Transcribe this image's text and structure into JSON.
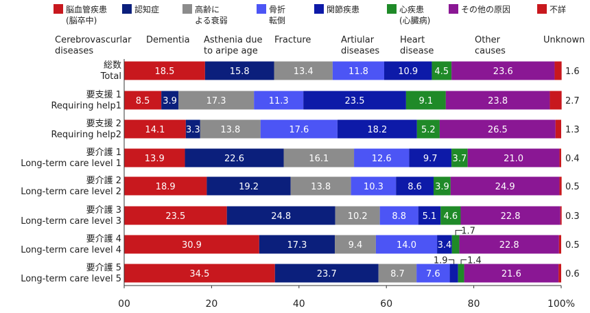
{
  "chart_data": {
    "type": "bar",
    "orientation": "horizontal",
    "stacked": true,
    "xlim": [
      0,
      100
    ],
    "x_ticks": [
      "00",
      "20",
      "40",
      "60",
      "80",
      "100%"
    ],
    "grid": false,
    "legend_position": "top",
    "categories": [
      {
        "jp": "総数",
        "en": "Total"
      },
      {
        "jp": "要支援 1",
        "en": "Requiring help1"
      },
      {
        "jp": "要支援 2",
        "en": "Requiring help2"
      },
      {
        "jp": "要介護 1",
        "en": "Long-term care level 1"
      },
      {
        "jp": "要介護 2",
        "en": "Long-term care level 2"
      },
      {
        "jp": "要介護 3",
        "en": "Long-term care level 3"
      },
      {
        "jp": "要介護 4",
        "en": "Long-term care level 4"
      },
      {
        "jp": "要介護 5",
        "en": "Long-term care level 5"
      }
    ],
    "series": [
      {
        "name_jp": [
          "脳血管疾患",
          "(脳卒中)"
        ],
        "name_en": [
          "Cerebrovascurlar",
          "diseases"
        ],
        "color": "#c8181e",
        "values": [
          18.5,
          8.5,
          14.1,
          13.9,
          18.9,
          23.5,
          30.9,
          34.5
        ]
      },
      {
        "name_jp": [
          "認知症"
        ],
        "name_en": [
          "Dementia"
        ],
        "color": "#0b1f7c",
        "values": [
          15.8,
          3.9,
          3.3,
          22.6,
          19.2,
          24.8,
          17.3,
          23.7
        ]
      },
      {
        "name_jp": [
          "高齢に",
          "よる衰弱"
        ],
        "name_en": [
          "Asthenia due",
          "to aripe age"
        ],
        "color": "#8c8c8c",
        "values": [
          13.4,
          17.3,
          13.8,
          16.1,
          13.8,
          10.2,
          9.4,
          8.7
        ]
      },
      {
        "name_jp": [
          "骨折",
          "転倒"
        ],
        "name_en": [
          "Fracture"
        ],
        "color": "#4c55f5",
        "values": [
          11.8,
          11.3,
          17.6,
          12.6,
          10.3,
          8.8,
          14.0,
          7.6
        ]
      },
      {
        "name_jp": [
          "関節疾患"
        ],
        "name_en": [
          "Artiular",
          "diseases"
        ],
        "color": "#0d1aa8",
        "values": [
          10.9,
          23.5,
          18.2,
          9.7,
          8.6,
          5.1,
          3.4,
          1.9
        ]
      },
      {
        "name_jp": [
          "心疾患",
          "(心臓病)"
        ],
        "name_en": [
          "Heart",
          "disease"
        ],
        "color": "#1f8a28",
        "values": [
          4.5,
          9.1,
          5.2,
          3.7,
          3.9,
          4.6,
          1.7,
          1.4
        ]
      },
      {
        "name_jp": [
          "その他の原因"
        ],
        "name_en": [
          "Other",
          "causes"
        ],
        "color": "#8a1794",
        "values": [
          23.6,
          23.8,
          26.5,
          21.0,
          24.9,
          22.8,
          22.8,
          21.6
        ]
      },
      {
        "name_jp": [
          "不詳"
        ],
        "name_en": [
          "Unknown"
        ],
        "color": "#c8181e",
        "values": [
          1.6,
          2.7,
          1.3,
          0.4,
          0.5,
          0.3,
          0.5,
          0.6
        ]
      }
    ],
    "hidden_labels": [
      {
        "row": 6,
        "series": 5
      },
      {
        "row": 7,
        "series": 4
      },
      {
        "row": 7,
        "series": 5
      }
    ],
    "callout_labels": [
      {
        "row": 6,
        "series": 5,
        "text": "1.7"
      },
      {
        "row": 7,
        "series": 4,
        "text": "1.9"
      },
      {
        "row": 7,
        "series": 5,
        "text": "1.4"
      }
    ]
  }
}
